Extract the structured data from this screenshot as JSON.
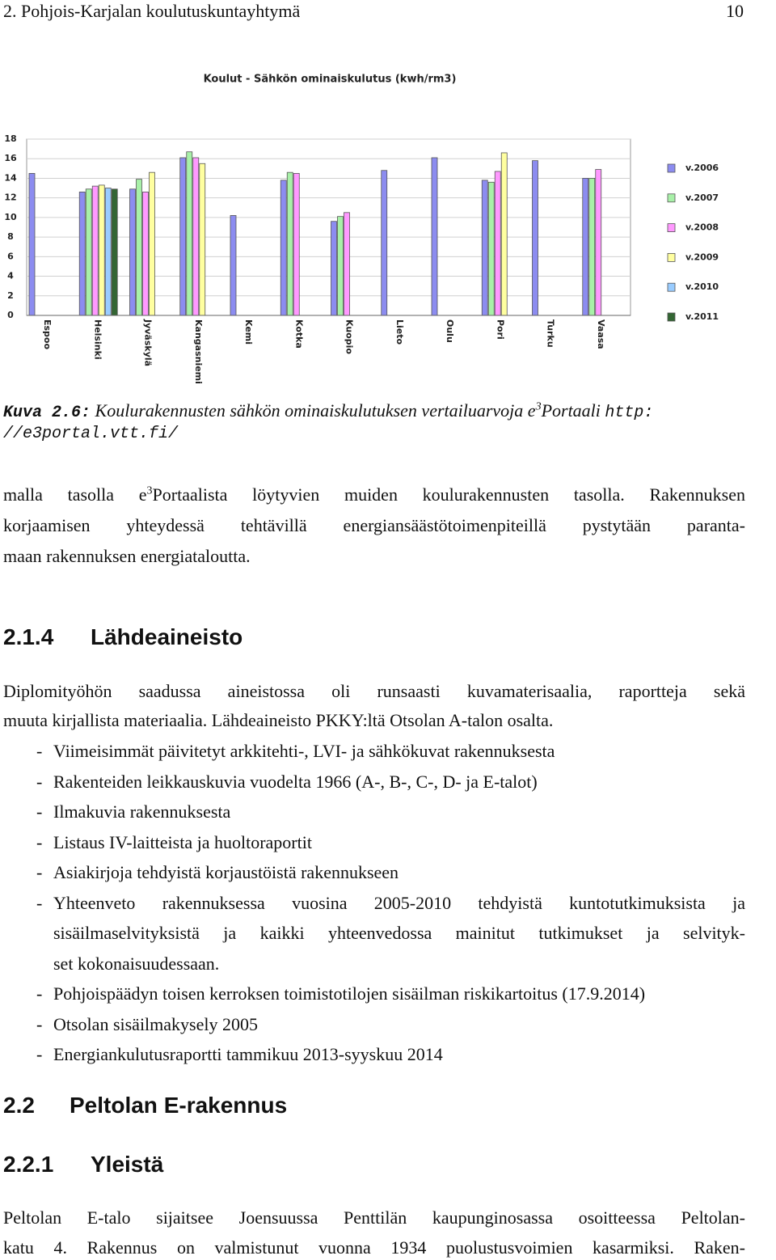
{
  "header": {
    "title": "2. Pohjois-Karjalan koulutuskuntayhtymä",
    "page": "10"
  },
  "chart_data": {
    "type": "bar",
    "title": "Koulut - Sähkön ominaiskulutus (kwh/rm3)",
    "categories": [
      "Espoo",
      "Helsinki",
      "Jyväskylä",
      "Kangasniemi",
      "Kemi",
      "Kotka",
      "Kuopio",
      "Lieto",
      "Oulu",
      "Pori",
      "Turku",
      "Vaasa"
    ],
    "series": [
      {
        "name": "v.2006",
        "color": "#8c8cf0",
        "values": [
          14.5,
          12.6,
          12.9,
          16.1,
          10.2,
          13.8,
          9.6,
          14.8,
          16.1,
          13.8,
          15.8,
          14.0
        ]
      },
      {
        "name": "v.2007",
        "color": "#a8f0a8",
        "values": [
          null,
          12.9,
          13.9,
          16.7,
          null,
          14.6,
          10.1,
          null,
          null,
          13.6,
          null,
          14.0
        ]
      },
      {
        "name": "v.2008",
        "color": "#ff99ff",
        "values": [
          null,
          13.2,
          12.6,
          16.1,
          null,
          14.5,
          10.5,
          null,
          null,
          14.7,
          null,
          14.9
        ]
      },
      {
        "name": "v.2009",
        "color": "#ffffa0",
        "values": [
          null,
          13.3,
          14.6,
          15.5,
          null,
          null,
          null,
          null,
          null,
          16.6,
          null,
          null
        ]
      },
      {
        "name": "v.2010",
        "color": "#99ccff",
        "values": [
          null,
          13.0,
          null,
          null,
          null,
          null,
          null,
          null,
          null,
          null,
          null,
          null
        ]
      },
      {
        "name": "v.2011",
        "color": "#336633",
        "values": [
          null,
          12.9,
          null,
          null,
          null,
          null,
          null,
          null,
          null,
          null,
          null,
          null
        ]
      }
    ],
    "ylim": [
      0,
      18
    ],
    "yticks": [
      0,
      2,
      4,
      6,
      8,
      10,
      12,
      14,
      16,
      18
    ],
    "grid": true,
    "legend": "right"
  },
  "caption": {
    "label": "Kuva 2.6:",
    "text": "Koulurakennusten sähkön ominaiskulutuksen vertailuarvoja e",
    "superscript": "3",
    "text_after": "Portaali",
    "url_lines": [
      "http:",
      "//e3portal.vtt.fi/"
    ]
  },
  "paragraph_1": {
    "first_line": {
      "before": "malla tasolla e",
      "superscript": "3",
      "after": "Portaalista löytyvien muiden koulurakennusten tasolla. Rakennuksen"
    },
    "lines": [
      "korjaamisen yhteydessä tehtävillä energiansäästötoimenpiteillä pystytään paranta-",
      "maan rakennuksen energiataloutta."
    ]
  },
  "section_2_1_4": {
    "number": "2.1.4",
    "title": "Lähdeaineisto",
    "lines": [
      "Diplomityöhön saadussa aineistossa oli runsaasti kuvamaterisaalia, raportteja sekä",
      "muuta kirjallista materiaalia. Lähdeaineisto PKKY:ltä Otsolan A-talon osalta."
    ],
    "list": {
      "marker": "-",
      "items": [
        [
          "Viimeisimmät päivitetyt arkkitehti-, LVI- ja sähkökuvat rakennuksesta"
        ],
        [
          "Rakenteiden leikkauskuvia vuodelta 1966 (A-, B-, C-, D- ja E-talot)"
        ],
        [
          "Ilmakuvia rakennuksesta"
        ],
        [
          "Listaus IV-laitteista ja huoltoraportit"
        ],
        [
          "Asiakirjoja tehdyistä korjaustöistä rakennukseen"
        ],
        [
          "Yhteenveto rakennuksessa vuosina 2005-2010 tehdyistä kuntotutkimuksista ja",
          "sisäilmaselvityksistä ja kaikki yhteenvedossa mainitut tutkimukset ja selvityk-",
          "set kokonaisuudessaan."
        ],
        [
          "Pohjoispäädyn toisen kerroksen toimistotilojen sisäilman riskikartoitus (17.9.2014)"
        ],
        [
          "Otsolan sisäilmakysely 2005"
        ],
        [
          "Energiankulutusraportti tammikuu 2013-syyskuu 2014"
        ]
      ]
    }
  },
  "section_2_2": {
    "number": "2.2",
    "title": "Peltolan E-rakennus"
  },
  "section_2_2_1": {
    "number": "2.2.1",
    "title": "Yleistä",
    "lines": [
      "Peltolan E-talo sijaitsee Joensuussa Penttilän kaupunginosassa osoitteessa Peltolan-",
      "katu 4. Rakennus on valmistunut vuonna 1934 puolustusvoimien kasarmiksi. Raken-"
    ]
  }
}
